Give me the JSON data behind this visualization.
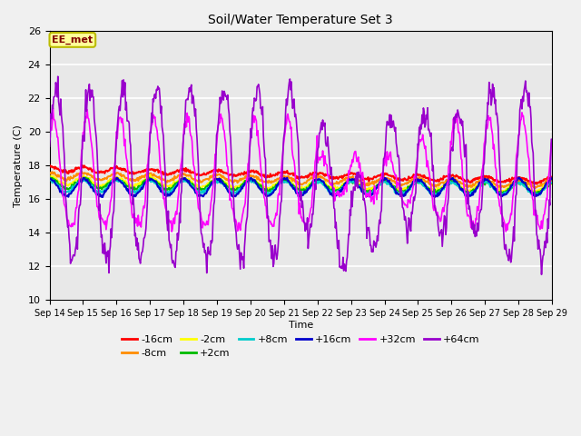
{
  "title": "Soil/Water Temperature Set 3",
  "xlabel": "Time",
  "ylabel": "Temperature (C)",
  "ylim": [
    10,
    26
  ],
  "yticks": [
    10,
    12,
    14,
    16,
    18,
    20,
    22,
    24,
    26
  ],
  "x_labels": [
    "Sep 14",
    "Sep 15",
    "Sep 16",
    "Sep 17",
    "Sep 18",
    "Sep 19",
    "Sep 20",
    "Sep 21",
    "Sep 22",
    "Sep 23",
    "Sep 24",
    "Sep 25",
    "Sep 26",
    "Sep 27",
    "Sep 28",
    "Sep 29"
  ],
  "series_colors": {
    "-16cm": "#FF0000",
    "-8cm": "#FF8C00",
    "-2cm": "#FFFF00",
    "+2cm": "#00BB00",
    "+8cm": "#00CCCC",
    "+16cm": "#0000CC",
    "+32cm": "#FF00FF",
    "+64cm": "#9900CC"
  },
  "annotation_text": "EE_met",
  "annotation_color": "#800000",
  "annotation_bg": "#FFFF99",
  "annotation_border": "#BBBB00",
  "plot_bg": "#E8E8E8",
  "fig_bg": "#F0F0F0",
  "grid_color": "#FFFFFF"
}
